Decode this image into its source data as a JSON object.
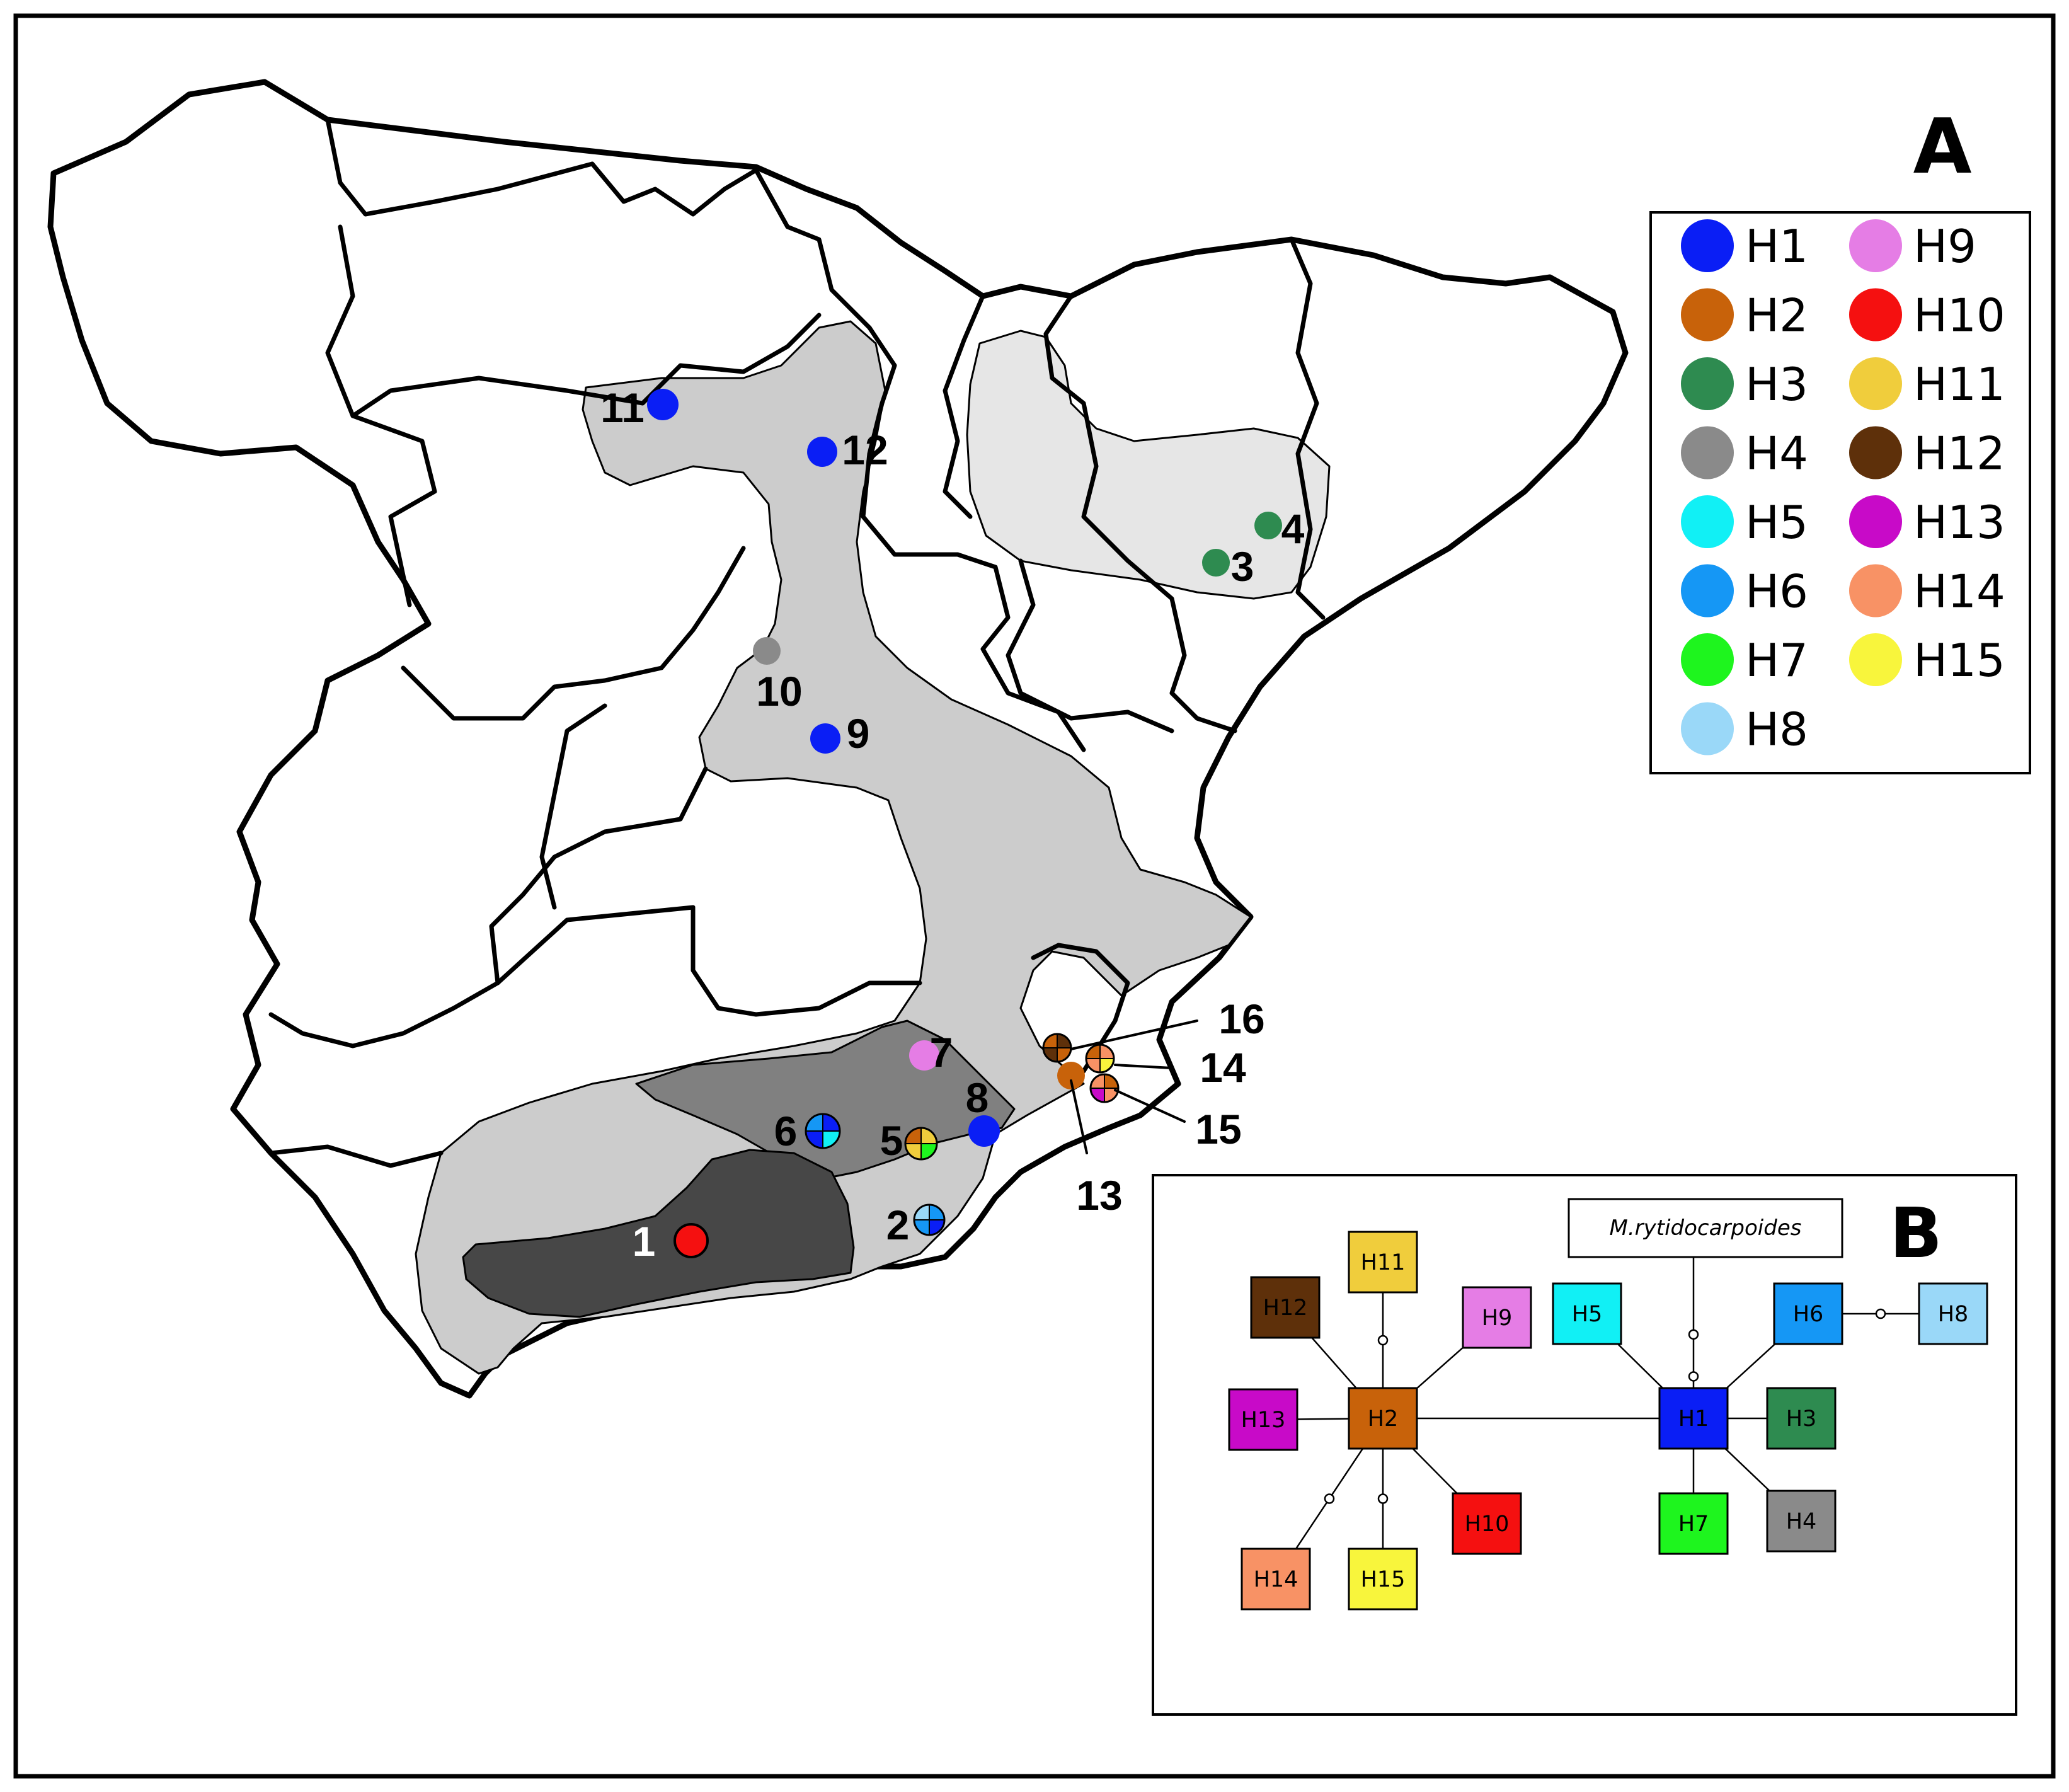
{
  "panels": {
    "a_label": "A",
    "b_label": "B"
  },
  "legend": [
    {
      "id": "H1",
      "label": "H1",
      "color": "#0a1ef5"
    },
    {
      "id": "H2",
      "label": "H2",
      "color": "#c8620a"
    },
    {
      "id": "H3",
      "label": "H3",
      "color": "#2e8b50"
    },
    {
      "id": "H4",
      "label": "H4",
      "color": "#8a8a8a"
    },
    {
      "id": "H5",
      "label": "H5",
      "color": "#11f0f5"
    },
    {
      "id": "H6",
      "label": "H6",
      "color": "#1597f5"
    },
    {
      "id": "H7",
      "label": "H7",
      "color": "#1ef51e"
    },
    {
      "id": "H8",
      "label": "H8",
      "color": "#9ad8f8"
    },
    {
      "id": "H9",
      "label": "H9",
      "color": "#e57de5"
    },
    {
      "id": "H10",
      "label": "H10",
      "color": "#f51010"
    },
    {
      "id": "H11",
      "label": "H11",
      "color": "#f0cd3c"
    },
    {
      "id": "H12",
      "label": "H12",
      "color": "#5e300a"
    },
    {
      "id": "H13",
      "label": "H13",
      "color": "#c80ac8"
    },
    {
      "id": "H14",
      "label": "H14",
      "color": "#f89265"
    },
    {
      "id": "H15",
      "label": "H15",
      "color": "#f8f53c"
    }
  ],
  "sites": [
    {
      "label": "1",
      "haplotypes": [
        "H10"
      ]
    },
    {
      "label": "2",
      "haplotypes": [
        "H6",
        "H1",
        "H6",
        "H8"
      ]
    },
    {
      "label": "3",
      "haplotypes": [
        "H3"
      ]
    },
    {
      "label": "4",
      "haplotypes": [
        "H3"
      ]
    },
    {
      "label": "5",
      "haplotypes": [
        "H11",
        "H7",
        "H11",
        "H2"
      ]
    },
    {
      "label": "6",
      "haplotypes": [
        "H1",
        "H5",
        "H1",
        "H6"
      ]
    },
    {
      "label": "7",
      "haplotypes": [
        "H9"
      ]
    },
    {
      "label": "8",
      "haplotypes": [
        "H1"
      ]
    },
    {
      "label": "9",
      "haplotypes": [
        "H1"
      ]
    },
    {
      "label": "10",
      "haplotypes": [
        "H4"
      ]
    },
    {
      "label": "11",
      "haplotypes": [
        "H1"
      ]
    },
    {
      "label": "12",
      "haplotypes": [
        "H1"
      ]
    },
    {
      "label": "13",
      "haplotypes": [
        "H2"
      ]
    },
    {
      "label": "14",
      "haplotypes": [
        "H14",
        "H15",
        "H14",
        "H2"
      ]
    },
    {
      "label": "15",
      "haplotypes": [
        "H2",
        "H14",
        "H13",
        "H14"
      ]
    },
    {
      "label": "16",
      "haplotypes": [
        "H12",
        "H2",
        "H12",
        "H2"
      ]
    }
  ],
  "network": {
    "outgroup": "M.rytidocarpoides",
    "nodes": [
      {
        "id": "H1",
        "label": "H1"
      },
      {
        "id": "H2",
        "label": "H2"
      },
      {
        "id": "H3",
        "label": "H3"
      },
      {
        "id": "H4",
        "label": "H4"
      },
      {
        "id": "H5",
        "label": "H5"
      },
      {
        "id": "H6",
        "label": "H6"
      },
      {
        "id": "H7",
        "label": "H7"
      },
      {
        "id": "H8",
        "label": "H8"
      },
      {
        "id": "H9",
        "label": "H9"
      },
      {
        "id": "H10",
        "label": "H10"
      },
      {
        "id": "H11",
        "label": "H11"
      },
      {
        "id": "H12",
        "label": "H12"
      },
      {
        "id": "H13",
        "label": "H13"
      },
      {
        "id": "H14",
        "label": "H14"
      },
      {
        "id": "H15",
        "label": "H15"
      }
    ],
    "edges": [
      {
        "from": "H2",
        "to": "H1",
        "missing": 0
      },
      {
        "from": "H1",
        "to": "outgroup",
        "missing": 2
      },
      {
        "from": "H1",
        "to": "H5",
        "missing": 0
      },
      {
        "from": "H1",
        "to": "H6",
        "missing": 0
      },
      {
        "from": "H6",
        "to": "H8",
        "missing": 1
      },
      {
        "from": "H1",
        "to": "H3",
        "missing": 0
      },
      {
        "from": "H1",
        "to": "H7",
        "missing": 0
      },
      {
        "from": "H1",
        "to": "H4",
        "missing": 0
      },
      {
        "from": "H2",
        "to": "H11",
        "missing": 1
      },
      {
        "from": "H2",
        "to": "H12",
        "missing": 0
      },
      {
        "from": "H2",
        "to": "H9",
        "missing": 0
      },
      {
        "from": "H2",
        "to": "H13",
        "missing": 0
      },
      {
        "from": "H2",
        "to": "H10",
        "missing": 0
      },
      {
        "from": "H2",
        "to": "H14",
        "missing": 1
      },
      {
        "from": "H2",
        "to": "H15",
        "missing": 1
      }
    ]
  }
}
